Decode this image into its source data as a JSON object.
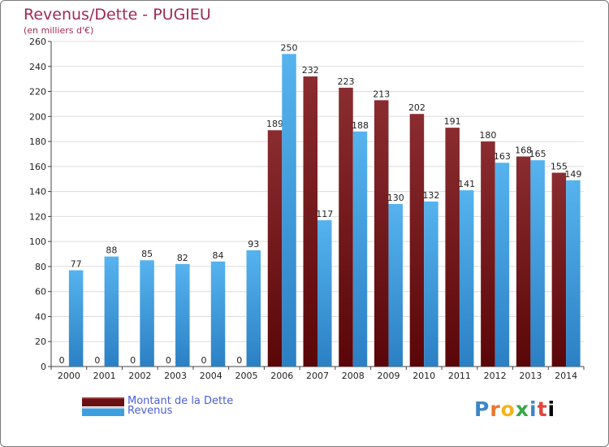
{
  "chart_data": {
    "type": "bar",
    "title": "Revenus/Dette - PUGIEU",
    "subtitle": "(en milliers d'€)",
    "categories": [
      "2000",
      "2001",
      "2002",
      "2003",
      "2004",
      "2005",
      "2006",
      "2007",
      "2008",
      "2009",
      "2010",
      "2011",
      "2012",
      "2013",
      "2014"
    ],
    "series": [
      {
        "name": "Montant de la Dette",
        "color": "#7a1c1e",
        "values": [
          0,
          0,
          0,
          0,
          0,
          0,
          189,
          232,
          223,
          213,
          202,
          191,
          180,
          168,
          155
        ]
      },
      {
        "name": "Revenus",
        "color": "#3d9fe0",
        "values": [
          77,
          88,
          85,
          82,
          84,
          93,
          250,
          117,
          188,
          130,
          132,
          141,
          163,
          165,
          149
        ]
      }
    ],
    "ylim": [
      0,
      260
    ],
    "yticks": [
      0,
      20,
      40,
      60,
      80,
      100,
      120,
      140,
      160,
      180,
      200,
      220,
      240,
      260
    ],
    "grid": true,
    "legend": "bottom-left"
  },
  "logo": {
    "letters": [
      "P",
      "r",
      "o",
      "x",
      "i",
      "t",
      "i"
    ]
  }
}
